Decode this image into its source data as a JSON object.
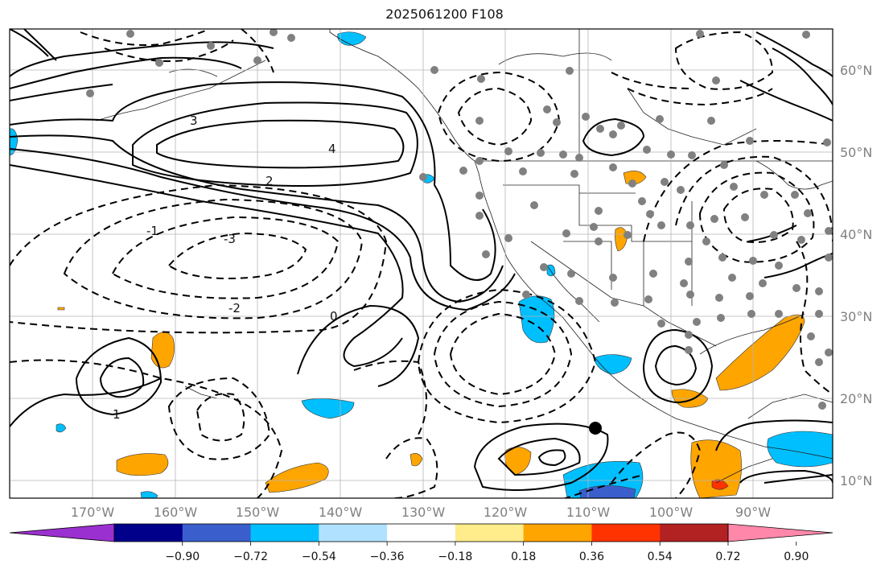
{
  "title": "2025061200 F108",
  "map": {
    "projection": "PlateCarree",
    "lon_range": [
      -180,
      -81
    ],
    "lat_range": [
      8,
      65
    ],
    "lat_labels": [
      "60°N",
      "50°N",
      "40°N",
      "30°N",
      "20°N",
      "10°N"
    ],
    "lon_labels": [
      "170°W",
      "160°W",
      "150°W",
      "140°W",
      "130°W",
      "120°W",
      "110°W",
      "100°W",
      "90°W"
    ],
    "gridlines": true,
    "contour_style": "solid positive, dashed negative",
    "contour_labels": [
      "4",
      "3",
      "2",
      "1",
      "0",
      "-1",
      "-2",
      "-3"
    ],
    "station_marker_color": "#808080"
  },
  "colorbar": {
    "ticks": [
      "−0.90",
      "−0.72",
      "−0.54",
      "−0.36",
      "−0.18",
      "0.18",
      "0.36",
      "0.54",
      "0.72",
      "0.90"
    ],
    "colors": [
      "#9b30d0",
      "#00008b",
      "#3a5fcd",
      "#00bfff",
      "#b0e2ff",
      "#ffffff",
      "#ffec8b",
      "#ffa500",
      "#ff3300",
      "#b22222",
      "#ff88aa"
    ],
    "extend": "both"
  }
}
